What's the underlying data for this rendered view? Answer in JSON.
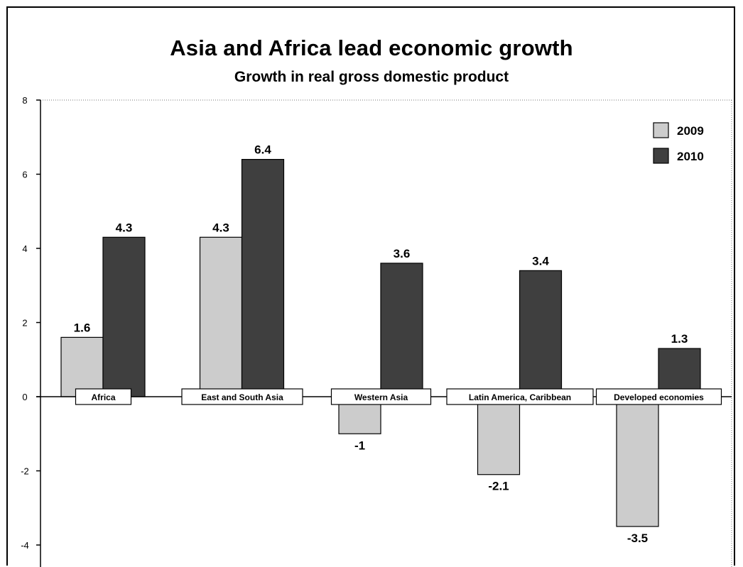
{
  "chart_data": {
    "type": "bar",
    "title": "Asia and Africa lead economic growth",
    "subtitle": "Growth in real gross domestic product",
    "xlabel": "",
    "ylabel": "",
    "categories": [
      "Africa",
      "East and South Asia",
      "Western Asia",
      "Latin America, Caribbean",
      "Developed economies"
    ],
    "series": [
      {
        "name": "2009",
        "values": [
          1.6,
          4.3,
          -1,
          -2.1,
          -3.5
        ],
        "labels": [
          "1.6",
          "4.3",
          "-1",
          "-2.1",
          "-3.5"
        ],
        "color": "#cccccc"
      },
      {
        "name": "2010",
        "values": [
          4.3,
          6.4,
          3.6,
          3.4,
          1.3
        ],
        "labels": [
          "4.3",
          "6.4",
          "3.6",
          "3.4",
          "1.3"
        ],
        "color": "#3f3f3f"
      }
    ],
    "ylim": [
      -4,
      8
    ],
    "yticks": [
      8,
      6,
      4,
      2,
      0,
      -2,
      -4
    ],
    "grid": false,
    "legend": "top-right"
  }
}
